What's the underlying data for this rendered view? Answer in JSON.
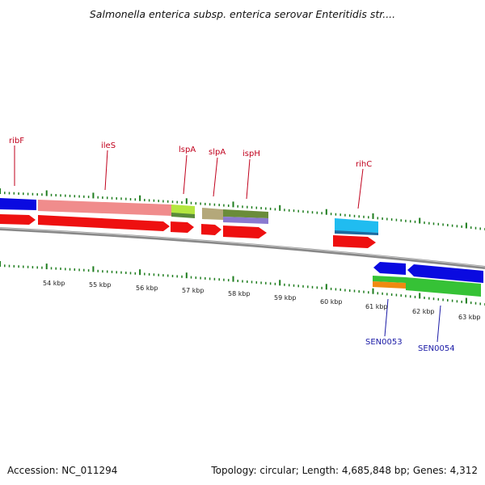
{
  "title": "Salmonella enterica subsp. enterica serovar Enteritidis str....",
  "footer": {
    "accession": "Accession: NC_011294",
    "summary": "Topology: circular; Length: 4,685,848 bp; Genes: 4,312"
  },
  "colors": {
    "top_labels": "#c0001c",
    "bottom_labels": "#1a1aa6",
    "ticks": "#1e7d1e",
    "backbone": "#888888"
  },
  "scale_labels": [
    "54 kbp",
    "55 kbp",
    "56 kbp",
    "57 kbp",
    "58 kbp",
    "59 kbp",
    "60 kbp",
    "61 kbp",
    "62 kbp",
    "63 kbp"
  ],
  "top_gene_labels": [
    "ribF",
    "ileS",
    "lspA",
    "slpA",
    "ispH",
    "rihC"
  ],
  "bottom_gene_labels": [
    "SEN0053",
    "SEN0054"
  ]
}
